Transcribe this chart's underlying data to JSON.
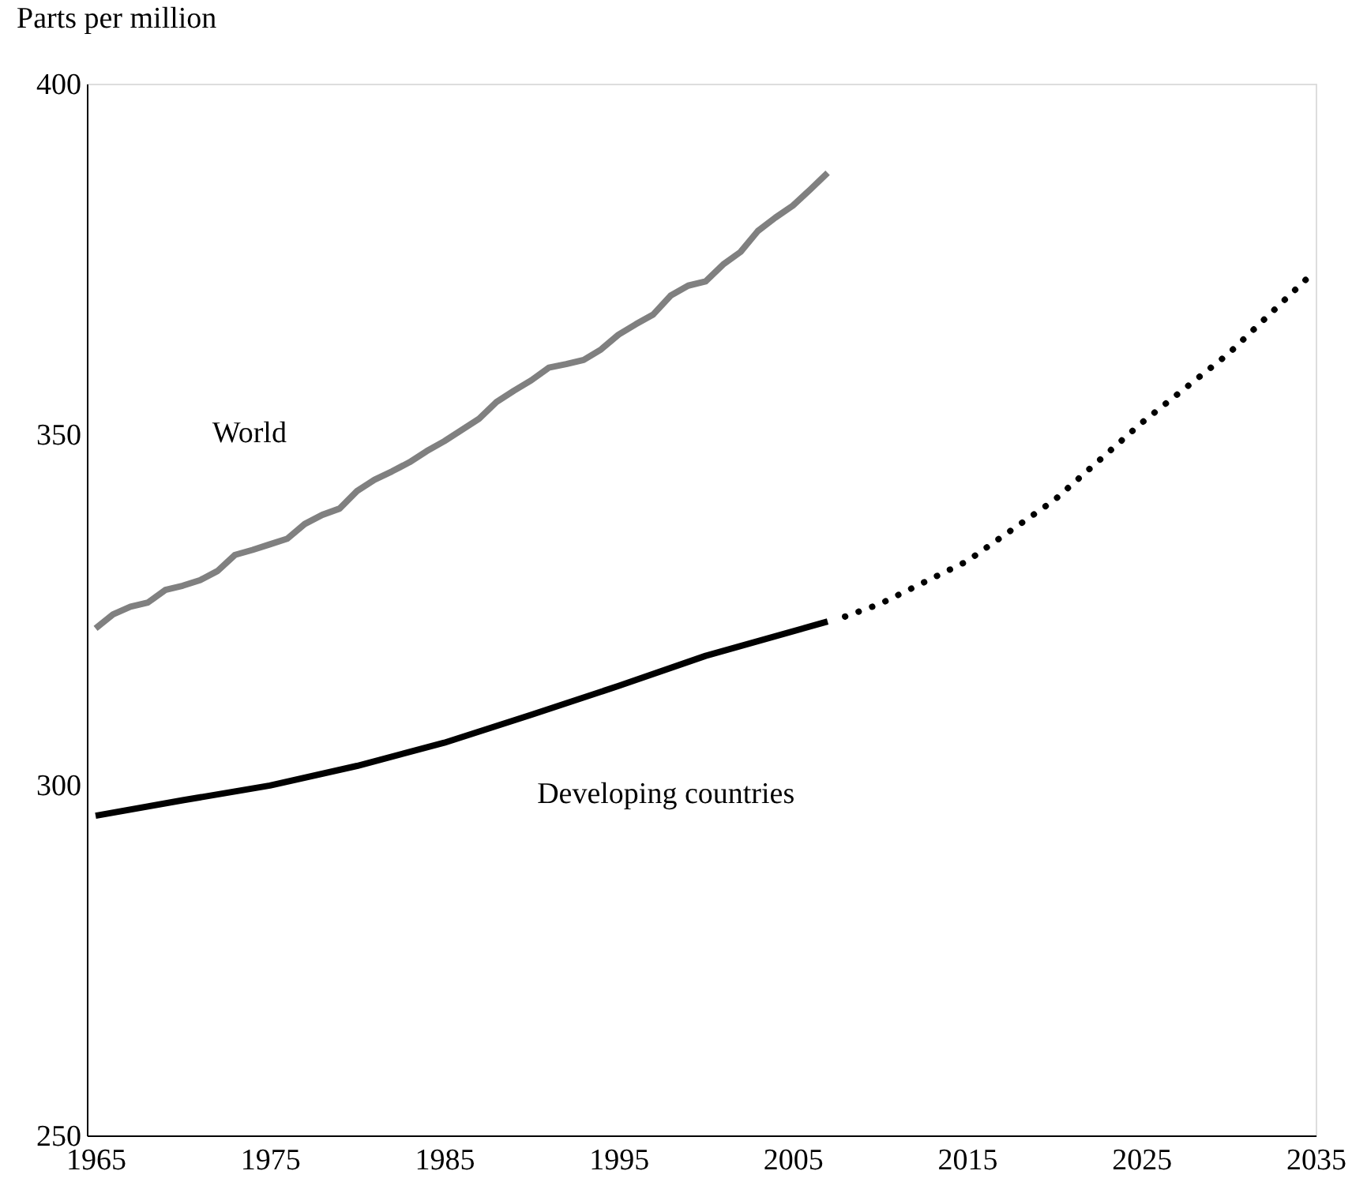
{
  "chart_data": {
    "type": "line",
    "ylabel": "Parts per million",
    "xlim": [
      1964.5,
      2035
    ],
    "xticks": [
      1965,
      1975,
      1985,
      1995,
      2005,
      2015,
      2025,
      2035
    ],
    "ylim": [
      250,
      400
    ],
    "yticks": [
      250,
      300,
      350,
      400
    ],
    "grid": false,
    "marker": "none",
    "series": [
      {
        "name": "World",
        "color": "#808080",
        "line_style": "solid",
        "x": [
          1965,
          1966,
          1967,
          1968,
          1969,
          1970,
          1971,
          1972,
          1973,
          1974,
          1975,
          1976,
          1977,
          1978,
          1979,
          1980,
          1981,
          1982,
          1983,
          1984,
          1985,
          1986,
          1987,
          1988,
          1989,
          1990,
          1991,
          1992,
          1993,
          1994,
          1995,
          1996,
          1997,
          1998,
          1999,
          2000,
          2001,
          2002,
          2003,
          2004,
          2005,
          2006,
          2007
        ],
        "values": [
          322.3,
          324.3,
          325.4,
          326.0,
          327.8,
          328.4,
          329.2,
          330.5,
          332.8,
          333.5,
          334.3,
          335.1,
          337.2,
          338.5,
          339.4,
          341.9,
          343.5,
          344.7,
          346.0,
          347.6,
          349.0,
          350.6,
          352.2,
          354.6,
          356.2,
          357.7,
          359.5,
          360.0,
          360.6,
          362.1,
          364.2,
          365.7,
          367.1,
          369.8,
          371.2,
          371.8,
          374.2,
          376.0,
          379.0,
          380.9,
          382.6,
          384.9,
          387.3
        ]
      },
      {
        "name": "Developing countries",
        "color": "#000000",
        "line_style": "solid",
        "x": [
          1965,
          1970,
          1975,
          1980,
          1985,
          1990,
          1995,
          2000,
          2007
        ],
        "values": [
          295.6,
          297.8,
          299.9,
          302.7,
          306.0,
          310.0,
          314.1,
          318.4,
          323.3
        ]
      },
      {
        "color": "#000000",
        "line_style": "dotted",
        "x": [
          2008,
          2010,
          2015,
          2020,
          2025,
          2030,
          2035
        ],
        "values": [
          324.0,
          325.8,
          331.9,
          340.6,
          351.6,
          361.5,
          373.4
        ]
      }
    ]
  }
}
